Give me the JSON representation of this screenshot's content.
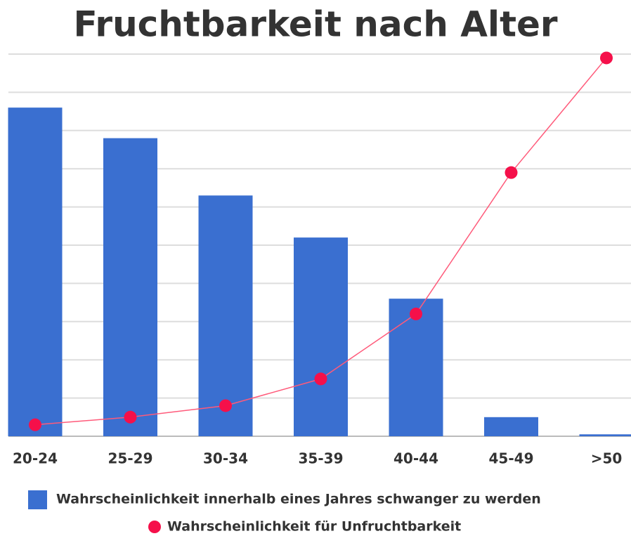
{
  "chart_data": {
    "type": "bar_line",
    "title": "Fruchtbarkeit nach Alter",
    "categories": [
      "20-24",
      "25-29",
      "30-34",
      "35-39",
      "40-44",
      "45-49",
      ">50"
    ],
    "series": [
      {
        "name": "Wahrscheinlichkeit innerhalb eines Jahres schwanger zu werden",
        "type": "bar",
        "color": "#3a6fd0",
        "values": [
          86,
          78,
          63,
          52,
          36,
          5,
          0.5
        ]
      },
      {
        "name": "Wahrscheinlichkeit für Unfruchtbarkeit",
        "type": "line",
        "color": "#f5104a",
        "values": [
          3,
          5,
          8,
          15,
          32,
          69,
          99
        ]
      }
    ],
    "ylim": [
      0,
      100
    ],
    "yticks": [
      0,
      10,
      20,
      30,
      40,
      50,
      60,
      70,
      80,
      90,
      100
    ],
    "grid": true
  }
}
